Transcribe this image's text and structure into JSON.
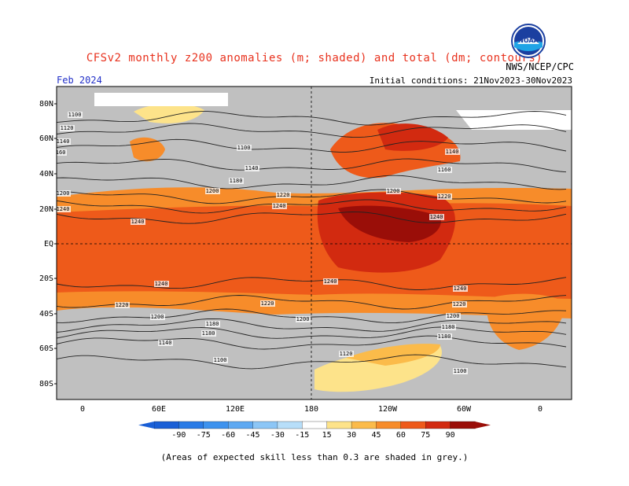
{
  "header": {
    "title": "CFSv2 monthly z200 anomalies (m; shaded) and total (dm; contours)",
    "valid_month": "Feb 2024",
    "initial_conditions": "Initial conditions: 21Nov2023-30Nov2023",
    "organization": "NWS/NCEP/CPC",
    "logo_text": "NOAA"
  },
  "axes": {
    "lat_labels": [
      "80N",
      "60N",
      "40N",
      "20N",
      "EQ",
      "20S",
      "40S",
      "60S",
      "80S"
    ],
    "lon_labels": [
      "0",
      "60E",
      "120E",
      "180",
      "120W",
      "60W",
      "0"
    ]
  },
  "colorbar": {
    "labels": [
      "-90",
      "-75",
      "-60",
      "-45",
      "-30",
      "-15",
      "15",
      "30",
      "45",
      "60",
      "75",
      "90"
    ],
    "colors": [
      "#1a5fd6",
      "#2a7be6",
      "#3d92ee",
      "#5ea9f2",
      "#8cc6f6",
      "#b7def9",
      "#ffffff",
      "#fde38a",
      "#fbbb4a",
      "#f78c2a",
      "#ee5a1a",
      "#d22a10",
      "#9a0e08"
    ]
  },
  "map_colors": {
    "grey": "#c0c0c0",
    "light": "#fde38a",
    "orange": "#fbbb4a",
    "orange2": "#f78c2a",
    "red": "#ee5a1a",
    "red2": "#d22a10",
    "dark": "#9a0e08"
  },
  "contour_labels": [
    {
      "text": "1100"
    },
    {
      "text": "1120"
    },
    {
      "text": "1140"
    },
    {
      "text": "1160"
    },
    {
      "text": "1200"
    },
    {
      "text": "1220"
    },
    {
      "text": "1240"
    },
    {
      "text": "1180"
    }
  ],
  "footnote": "(Areas of expected skill less than 0.3 are shaded in grey.)"
}
